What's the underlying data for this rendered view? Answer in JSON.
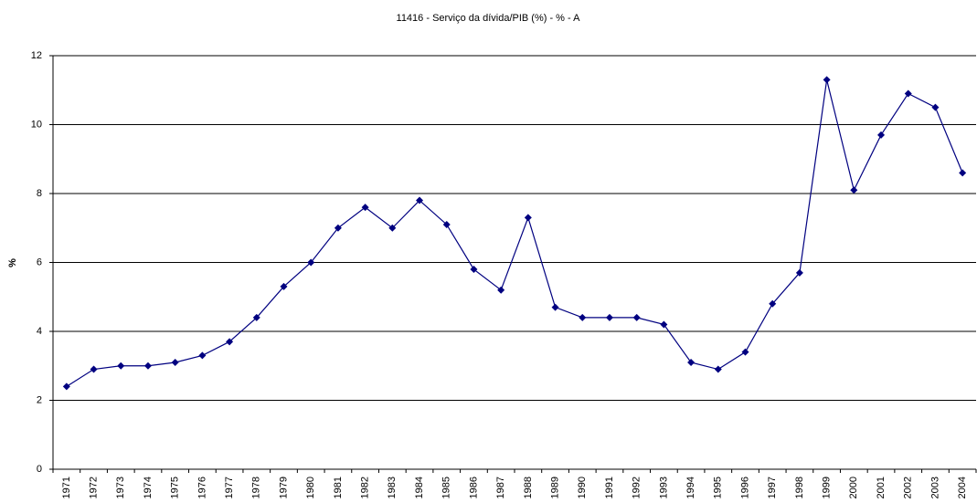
{
  "chart_data": {
    "type": "line",
    "title": "11416 - Serviço da dívida/PIB (%) - % - A",
    "y_label": "%",
    "categories": [
      "1971",
      "1972",
      "1973",
      "1974",
      "1975",
      "1976",
      "1977",
      "1978",
      "1979",
      "1980",
      "1981",
      "1982",
      "1983",
      "1984",
      "1985",
      "1986",
      "1987",
      "1988",
      "1989",
      "1990",
      "1991",
      "1992",
      "1993",
      "1994",
      "1995",
      "1996",
      "1997",
      "1998",
      "1999",
      "2000",
      "2001",
      "2002",
      "2003",
      "2004"
    ],
    "values": [
      2.4,
      2.9,
      3.0,
      3.0,
      3.1,
      3.3,
      3.7,
      4.4,
      5.3,
      6.0,
      7.0,
      7.6,
      7.0,
      7.8,
      7.1,
      5.8,
      5.2,
      7.3,
      4.7,
      4.4,
      4.4,
      4.4,
      4.2,
      3.1,
      2.9,
      3.4,
      4.8,
      5.7,
      11.3,
      8.1,
      9.7,
      10.9,
      10.5,
      8.6
    ],
    "color": "#000080",
    "ylim": [
      0,
      12
    ],
    "yticks": [
      0,
      2,
      4,
      6,
      8,
      10,
      12
    ],
    "grid": true
  }
}
